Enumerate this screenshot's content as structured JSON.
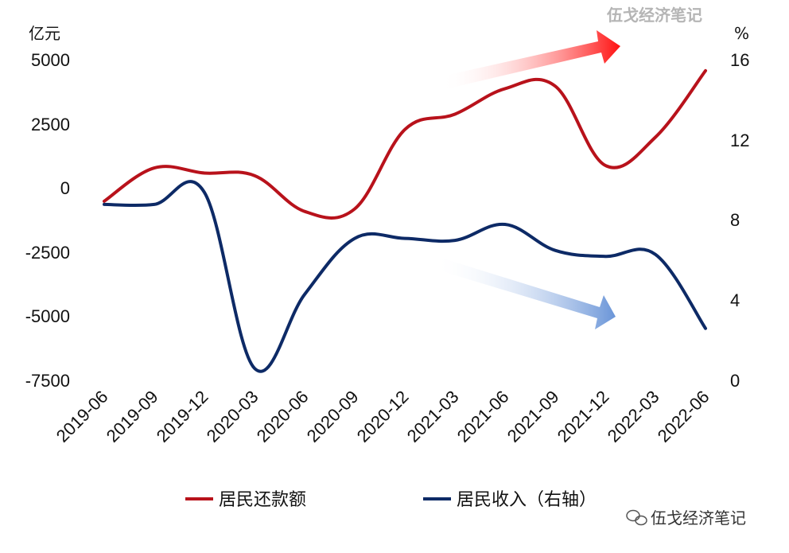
{
  "chart_data": {
    "type": "line",
    "categories": [
      "2019-06",
      "2019-09",
      "2019-12",
      "2020-03",
      "2020-06",
      "2020-09",
      "2020-12",
      "2021-03",
      "2021-06",
      "2021-09",
      "2021-12",
      "2022-03",
      "2022-06"
    ],
    "left_axis": {
      "unit": "亿元",
      "ticks": [
        "5000",
        "2500",
        "0",
        "-2500",
        "-5000",
        "-7500"
      ],
      "ylim": [
        -7500,
        5000
      ]
    },
    "right_axis": {
      "unit": "%",
      "ticks": [
        "16",
        "12",
        "8",
        "4",
        "0"
      ],
      "ylim": [
        0,
        16
      ]
    },
    "series": [
      {
        "name": "居民还款额",
        "axis": "left",
        "color": "#b8121b",
        "values": [
          -500,
          800,
          600,
          500,
          -900,
          -800,
          2300,
          2900,
          3900,
          4000,
          900,
          2000,
          4600
        ]
      },
      {
        "name": "居民收入（右轴）",
        "axis": "right",
        "color": "#0d2a66",
        "values": [
          8.8,
          8.8,
          9.4,
          0.6,
          4.3,
          7.1,
          7.1,
          7.0,
          7.8,
          6.5,
          6.2,
          6.3,
          2.6
        ]
      }
    ],
    "trend_arrows": [
      {
        "direction": "up",
        "color": "#ff1a1a"
      },
      {
        "direction": "down",
        "color": "#5a8ad6"
      }
    ]
  },
  "watermark": {
    "top": "伍戈经济笔记",
    "bottom": "伍戈经济笔记"
  }
}
